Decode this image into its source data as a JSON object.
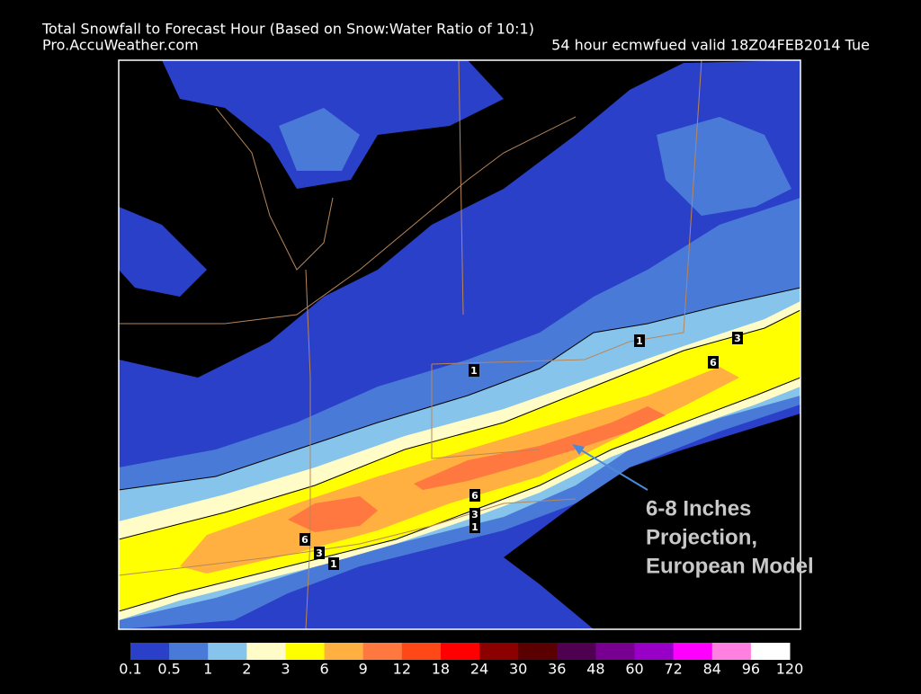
{
  "header": {
    "title": "Total Snowfall to Forecast Hour (Based on Snow:Water Ratio of 10:1)",
    "source": "Pro.AccuWeather.com",
    "run": "54 hour ecmwfued valid  18Z04FEB2014  Tue"
  },
  "map": {
    "contour_labels": [
      1,
      3,
      6,
      1,
      6,
      3,
      1,
      6,
      3,
      1
    ]
  },
  "annotation": {
    "lines": [
      "6-8 Inches",
      "Projection,",
      "European Model"
    ]
  },
  "legend": {
    "labels": [
      0.1,
      0.5,
      1,
      2,
      3,
      6,
      9,
      12,
      18,
      24,
      30,
      36,
      48,
      60,
      72,
      84,
      96,
      120
    ],
    "colors": [
      "#2b40c8",
      "#4a7ad8",
      "#86c4ec",
      "#fffcc8",
      "#ffff00",
      "#ffb040",
      "#ff7840",
      "#ff4818",
      "#ff0000",
      "#8c0000",
      "#5a0000",
      "#500050",
      "#780090",
      "#9800c8",
      "#ff00ff",
      "#ff80e0",
      "#ffffff"
    ]
  }
}
